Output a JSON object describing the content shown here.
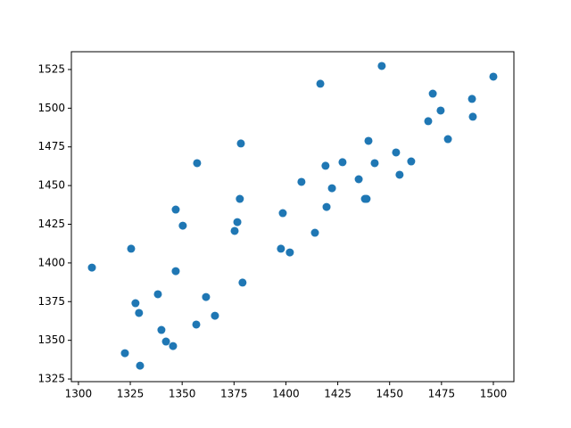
{
  "chart_data": {
    "type": "scatter",
    "color": "#1f77b4",
    "grid": false,
    "x": [
      1306.5,
      1325.4,
      1327.5,
      1329.2,
      1322.4,
      1329.7,
      1338.3,
      1340.0,
      1342.2,
      1345.6,
      1346.9,
      1350.3,
      1346.9,
      1357.2,
      1356.8,
      1361.5,
      1365.8,
      1375.3,
      1376.6,
      1377.8,
      1378.3,
      1379.1,
      1397.6,
      1398.5,
      1401.9,
      1407.5,
      1414.0,
      1416.6,
      1419.1,
      1419.6,
      1422.2,
      1427.3,
      1435.1,
      1438.1,
      1438.9,
      1439.8,
      1442.8,
      1446.2,
      1453.1,
      1454.8,
      1460.4,
      1468.6,
      1470.8,
      1474.6,
      1478.1,
      1489.7,
      1490.1,
      1500.0
    ],
    "values": [
      1397.0,
      1409.2,
      1374.0,
      1367.7,
      1341.7,
      1333.6,
      1379.8,
      1356.7,
      1349.2,
      1346.3,
      1434.5,
      1424.1,
      1394.7,
      1464.5,
      1360.2,
      1378.0,
      1365.9,
      1420.7,
      1426.4,
      1441.4,
      1477.2,
      1387.3,
      1409.2,
      1432.2,
      1406.8,
      1452.4,
      1419.5,
      1515.8,
      1462.8,
      1436.2,
      1448.3,
      1465.1,
      1454.1,
      1441.4,
      1441.4,
      1478.9,
      1464.5,
      1527.3,
      1471.4,
      1457.0,
      1465.6,
      1491.6,
      1509.4,
      1498.5,
      1480.0,
      1506.0,
      1494.5,
      1520.4
    ],
    "xlim": [
      1296.6,
      1509.9
    ],
    "xticks": [
      1300,
      1325,
      1350,
      1375,
      1400,
      1425,
      1450,
      1475,
      1500
    ],
    "ylim": [
      1323.3,
      1536.5
    ],
    "yticks": [
      1325,
      1350,
      1375,
      1400,
      1425,
      1450,
      1475,
      1500,
      1525
    ]
  }
}
